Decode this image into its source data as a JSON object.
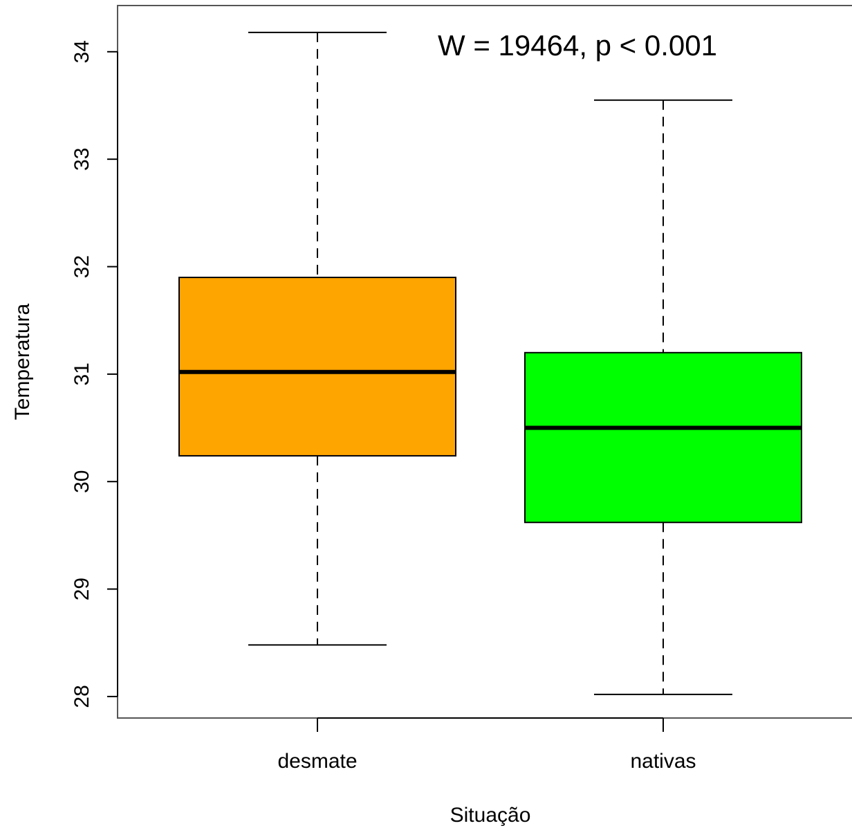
{
  "chart_data": {
    "type": "box",
    "title": "",
    "xlabel": "Situação",
    "ylabel": "Temperatura",
    "ylim": [
      27.8,
      34.43
    ],
    "yticks": [
      28,
      29,
      30,
      31,
      32,
      33,
      34
    ],
    "grid": false,
    "annotation": "W = 19464, p < 0.001",
    "categories": [
      "desmate",
      "nativas"
    ],
    "boxes": [
      {
        "name": "desmate",
        "whisker_low": 28.48,
        "q1": 30.24,
        "median": 31.02,
        "q3": 31.9,
        "whisker_high": 34.18,
        "color": "#FFA500"
      },
      {
        "name": "nativas",
        "whisker_low": 28.02,
        "q1": 29.62,
        "median": 30.5,
        "q3": 31.2,
        "whisker_high": 33.55,
        "color": "#00FF00"
      }
    ]
  }
}
